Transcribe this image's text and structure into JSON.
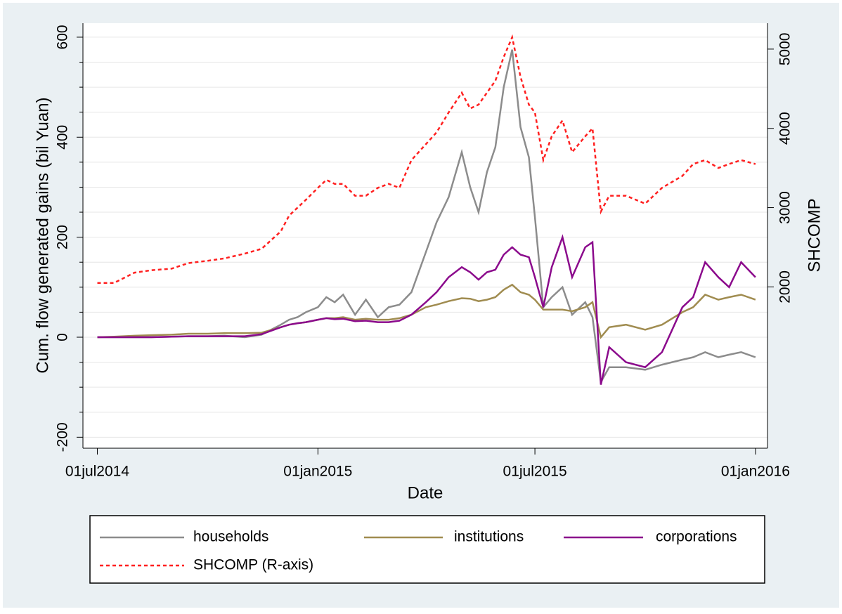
{
  "chart_data": {
    "type": "line",
    "y_label": "Cum. flow generated gains (bil Yuan)",
    "y2_label": "SHCOMP",
    "x_label": "Date",
    "x": [
      "2014-07-01",
      "2014-07-15",
      "2014-08-01",
      "2014-08-15",
      "2014-09-01",
      "2014-09-15",
      "2014-10-01",
      "2014-10-15",
      "2014-11-01",
      "2014-11-15",
      "2014-12-01",
      "2014-12-08",
      "2014-12-15",
      "2014-12-22",
      "2015-01-01",
      "2015-01-08",
      "2015-01-15",
      "2015-01-22",
      "2015-02-01",
      "2015-02-10",
      "2015-02-20",
      "2015-03-01",
      "2015-03-10",
      "2015-03-20",
      "2015-04-01",
      "2015-04-10",
      "2015-04-20",
      "2015-05-01",
      "2015-05-08",
      "2015-05-15",
      "2015-05-22",
      "2015-05-29",
      "2015-06-05",
      "2015-06-12",
      "2015-06-19",
      "2015-06-26",
      "2015-07-01",
      "2015-07-08",
      "2015-07-15",
      "2015-07-24",
      "2015-08-01",
      "2015-08-12",
      "2015-08-18",
      "2015-08-25",
      "2015-09-01",
      "2015-09-15",
      "2015-10-01",
      "2015-10-15",
      "2015-11-01",
      "2015-11-10",
      "2015-11-20",
      "2015-12-01",
      "2015-12-10",
      "2015-12-20",
      "2016-01-01"
    ],
    "series": [
      {
        "name": "households",
        "color": "#8c8c8c",
        "values": [
          0,
          0,
          0,
          0,
          1,
          2,
          2,
          3,
          0,
          5,
          25,
          35,
          40,
          50,
          60,
          80,
          70,
          85,
          45,
          75,
          40,
          60,
          65,
          90,
          170,
          230,
          280,
          370,
          300,
          250,
          330,
          380,
          500,
          575,
          420,
          360,
          240,
          60,
          80,
          100,
          45,
          70,
          40,
          -90,
          -60,
          -60,
          -65,
          -55,
          -45,
          -40,
          -30,
          -40,
          -35,
          -30,
          -40
        ]
      },
      {
        "name": "institutions",
        "color": "#a08c50",
        "values": [
          0,
          1,
          3,
          4,
          5,
          7,
          7,
          8,
          8,
          9,
          20,
          25,
          28,
          30,
          35,
          38,
          38,
          40,
          35,
          37,
          35,
          35,
          38,
          45,
          60,
          65,
          72,
          78,
          77,
          72,
          75,
          80,
          95,
          105,
          90,
          85,
          75,
          55,
          55,
          55,
          52,
          60,
          70,
          0,
          20,
          25,
          15,
          25,
          50,
          60,
          85,
          75,
          80,
          85,
          75
        ]
      },
      {
        "name": "corporations",
        "color": "#8b0a8c",
        "values": [
          0,
          0,
          0,
          0,
          1,
          2,
          2,
          2,
          2,
          6,
          20,
          25,
          28,
          30,
          35,
          38,
          36,
          37,
          32,
          33,
          30,
          30,
          33,
          45,
          70,
          90,
          120,
          140,
          130,
          115,
          130,
          135,
          165,
          180,
          165,
          160,
          120,
          60,
          140,
          200,
          120,
          180,
          190,
          -95,
          -20,
          -50,
          -60,
          -30,
          60,
          80,
          150,
          120,
          100,
          150,
          120
        ]
      },
      {
        "name": "SHCOMP (R-axis)",
        "color": "#ff2020",
        "axis": "y2",
        "dashed": true,
        "values": [
          2050,
          2050,
          2180,
          2210,
          2230,
          2300,
          2330,
          2360,
          2420,
          2480,
          2700,
          2900,
          3000,
          3100,
          3250,
          3350,
          3300,
          3300,
          3150,
          3150,
          3250,
          3300,
          3250,
          3600,
          3800,
          3950,
          4200,
          4450,
          4250,
          4300,
          4450,
          4600,
          4900,
          5150,
          4650,
          4300,
          4200,
          3600,
          3900,
          4100,
          3700,
          3900,
          4000,
          2950,
          3150,
          3150,
          3050,
          3250,
          3400,
          3550,
          3600,
          3500,
          3550,
          3600,
          3550
        ]
      }
    ],
    "xlim": [
      "2014-06-19",
      "2016-01-11"
    ],
    "xticks": [
      {
        "value": "2014-07-01",
        "label": "01jul2014"
      },
      {
        "value": "2015-01-01",
        "label": "01jan2015"
      },
      {
        "value": "2015-07-01",
        "label": "01jul2015"
      },
      {
        "value": "2016-01-01",
        "label": "01jan2016"
      }
    ],
    "ylim": [
      -222,
      628
    ],
    "yticks": [
      -200,
      0,
      200,
      400,
      600
    ],
    "yminorticks": [
      -150,
      -100,
      -50,
      50,
      100,
      150,
      250,
      300,
      350,
      450,
      500,
      550
    ],
    "y2lim": [
      -35,
      5327
    ],
    "y2ticks": [
      2000,
      3000,
      4000,
      5000
    ],
    "grid": true
  }
}
